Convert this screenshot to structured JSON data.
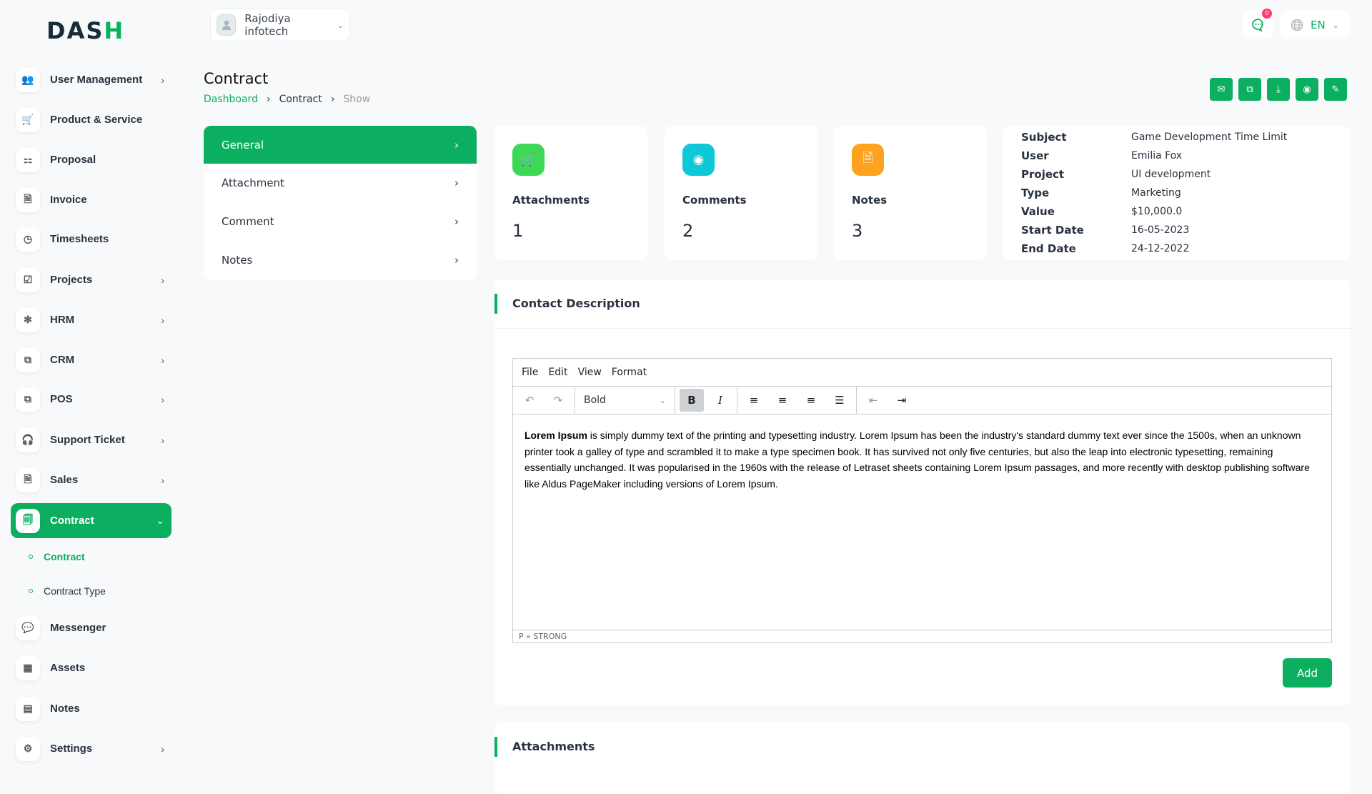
{
  "brand": {
    "logo_text": "DASH",
    "accent": "#0caf60"
  },
  "header": {
    "company": "Rajodiya infotech",
    "notification_count": "0",
    "language": "EN"
  },
  "sidebar": {
    "items": [
      {
        "label": "User Management",
        "icon": "users-icon",
        "arrow": true
      },
      {
        "label": "Product & Service",
        "icon": "cart-icon"
      },
      {
        "label": "Proposal",
        "icon": "proposal-icon"
      },
      {
        "label": "Invoice",
        "icon": "invoice-icon"
      },
      {
        "label": "Timesheets",
        "icon": "clock-icon"
      },
      {
        "label": "Projects",
        "icon": "check-square-icon",
        "arrow": true
      },
      {
        "label": "HRM",
        "icon": "hrm-icon",
        "arrow": true
      },
      {
        "label": "CRM",
        "icon": "crm-icon",
        "arrow": true
      },
      {
        "label": "POS",
        "icon": "pos-icon",
        "arrow": true
      },
      {
        "label": "Support Ticket",
        "icon": "headset-icon",
        "arrow": true
      },
      {
        "label": "Sales",
        "icon": "sales-icon",
        "arrow": true
      },
      {
        "label": "Contract",
        "icon": "contract-icon",
        "active": true
      },
      {
        "label": "Messenger",
        "icon": "message-icon"
      },
      {
        "label": "Assets",
        "icon": "calculator-icon"
      },
      {
        "label": "Notes",
        "icon": "calendar-icon"
      },
      {
        "label": "Settings",
        "icon": "gear-icon",
        "arrow": true
      }
    ],
    "sub": [
      "Contract",
      "Contract Type"
    ]
  },
  "page": {
    "title": "Contract",
    "breadcrumb": [
      "Dashboard",
      "Contract",
      "Show"
    ]
  },
  "menu": [
    "General",
    "Attachment",
    "Comment",
    "Notes"
  ],
  "stats": [
    {
      "label": "Attachments",
      "value": "1",
      "color": "#3cd856"
    },
    {
      "label": "Comments",
      "value": "2",
      "color": "#0dc8d9"
    },
    {
      "label": "Notes",
      "value": "3",
      "color": "#ffa21d"
    }
  ],
  "info": [
    [
      "Subject",
      "Game Development Time Limit"
    ],
    [
      "User",
      "Emilia Fox"
    ],
    [
      "Project",
      "UI development"
    ],
    [
      "Type",
      "Marketing"
    ],
    [
      "Value",
      "$10,000.0"
    ],
    [
      "Start Date",
      "16-05-2023"
    ],
    [
      "End Date",
      "24-12-2022"
    ]
  ],
  "description": {
    "title": "Contact Description",
    "menubar": [
      "File",
      "Edit",
      "View",
      "Format"
    ],
    "format": "Bold",
    "bold_lead": "Lorem Ipsum",
    "body": " is simply dummy text of the printing and typesetting industry. Lorem Ipsum has been the industry's standard dummy text ever since the 1500s, when an unknown printer took a galley of type and scrambled it to make a type specimen book. It has survived not only five centuries, but also the leap into electronic typesetting, remaining essentially unchanged. It was popularised in the 1960s with the release of Letraset sheets containing Lorem Ipsum passages, and more recently with desktop publishing software like Aldus PageMaker including versions of Lorem Ipsum.",
    "path": "P » STRONG",
    "add": "Add"
  },
  "attachments": {
    "title": "Attachments"
  }
}
